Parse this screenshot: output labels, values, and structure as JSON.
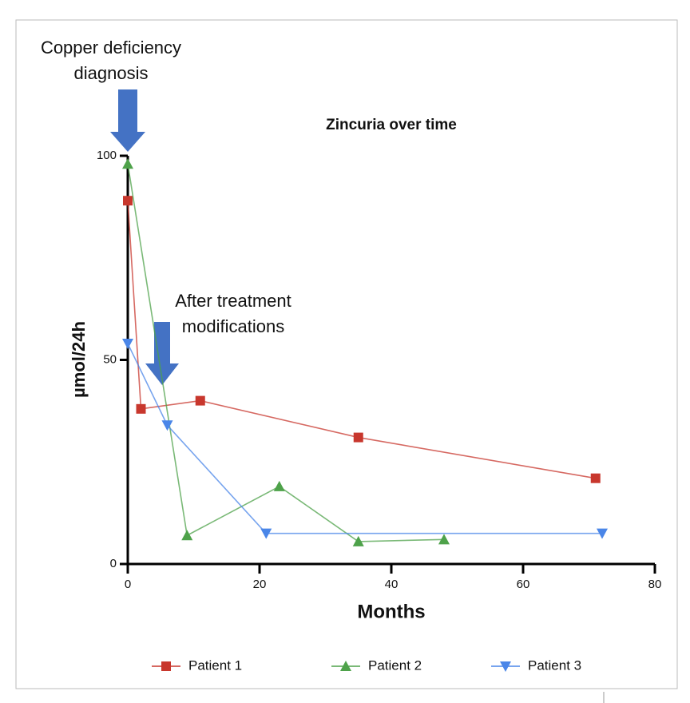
{
  "chart_data": {
    "type": "line",
    "title": "Zincuria over time",
    "xlabel": "Months",
    "ylabel": "µmol/24h",
    "xlim": [
      0,
      80
    ],
    "xticks": [
      0,
      20,
      40,
      60,
      80
    ],
    "ylim": [
      0,
      100
    ],
    "yticks": [
      0,
      50,
      100
    ],
    "legend": "bottom",
    "series": [
      {
        "name": "Patient 1",
        "color": "#c8372d",
        "marker": "square",
        "x": [
          0,
          2,
          11,
          35,
          71
        ],
        "values": [
          89,
          38,
          40,
          31,
          21
        ]
      },
      {
        "name": "Patient 2",
        "color": "#4ea24a",
        "marker": "triangle-up",
        "x": [
          0,
          9,
          23,
          35,
          48
        ],
        "values": [
          98,
          7,
          19,
          5.5,
          6
        ]
      },
      {
        "name": "Patient 3",
        "color": "#4a86e8",
        "marker": "triangle-down",
        "x": [
          0,
          6,
          21,
          72
        ],
        "values": [
          54,
          34,
          7.5,
          7.5
        ]
      }
    ],
    "annotations": [
      {
        "lines": [
          "Copper deficiency",
          "diagnosis"
        ]
      },
      {
        "lines": [
          "After treatment",
          "modifications"
        ]
      }
    ]
  }
}
